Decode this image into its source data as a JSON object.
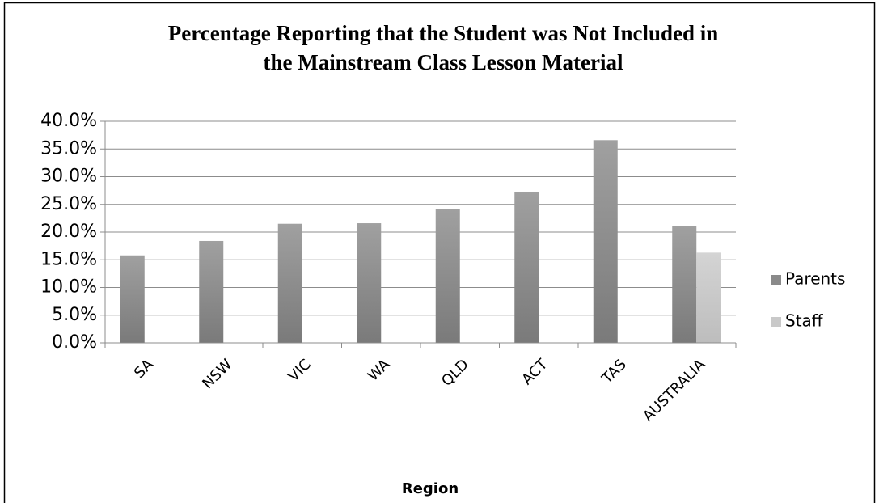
{
  "chart_data": {
    "type": "bar",
    "title": [
      "Percentage Reporting that the Student was Not Included in",
      "the Mainstream Class  Lesson Material"
    ],
    "x_label": "Region",
    "categories": [
      "SA",
      "NSW",
      "VIC",
      "WA",
      "QLD",
      "ACT",
      "TAS",
      "AUSTRALIA"
    ],
    "series": [
      {
        "name": "Parents",
        "color": "#8a8a8a",
        "values": [
          15.8,
          18.4,
          21.5,
          21.6,
          24.2,
          27.3,
          36.6,
          21.1
        ]
      },
      {
        "name": "Staff",
        "color": "#c9c9c9",
        "values": [
          null,
          null,
          null,
          null,
          null,
          null,
          null,
          16.3
        ]
      }
    ],
    "ylim": [
      0,
      40
    ],
    "yticks": [
      {
        "value": 0,
        "label": "0.0%"
      },
      {
        "value": 5,
        "label": "5.0%"
      },
      {
        "value": 10,
        "label": "10.0%"
      },
      {
        "value": 15,
        "label": "15.0%"
      },
      {
        "value": 20,
        "label": "20.0%"
      },
      {
        "value": 25,
        "label": "25.0%"
      },
      {
        "value": 30,
        "label": "30.0%"
      },
      {
        "value": 35,
        "label": "35.0%"
      },
      {
        "value": 40,
        "label": "40.0%"
      }
    ],
    "grid": true,
    "legend": "right"
  }
}
